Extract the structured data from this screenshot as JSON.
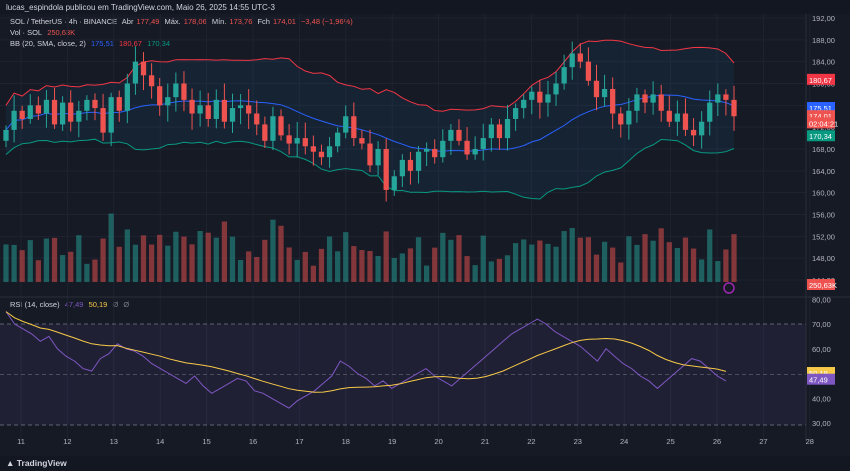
{
  "header": {
    "publish_line": "lucas_espindola publicou em TradingView.com, Maio 26, 2025 14:55 UTC-3"
  },
  "legend": {
    "symbol": "SOL / TetherUS · 4h · BINANCE",
    "ohlc": [
      {
        "label": "Abr",
        "value": "177,49"
      },
      {
        "label": "Máx.",
        "value": "178,06"
      },
      {
        "label": "Mín.",
        "value": "173,76"
      },
      {
        "label": "Fch",
        "value": "174,01"
      }
    ],
    "change": "−3,48 (−1,96%)",
    "vol_label": "Vol · SOL",
    "vol_value": "250,63K",
    "bb_label": "BB (20, SMA, close, 2)",
    "bb_values": [
      "175,51",
      "180,67",
      "170,34"
    ],
    "rsi_label": "RSI (14, close)",
    "rsi_values": [
      "47,49",
      "50,19"
    ],
    "rsi_extra": [
      "Ø",
      "Ø"
    ]
  },
  "colors": {
    "up": "#26a69a",
    "down": "#ef5350",
    "bb_basis": "#2962ff",
    "bb_upper": "#f23645",
    "bb_lower": "#089981",
    "rsi": "#7e57c2",
    "rsi_ma": "#f7c948",
    "background": "#161a25"
  },
  "price_axis": {
    "ticks": [
      "192,00",
      "188,00",
      "184,00",
      "180,00",
      "176,00",
      "172,00",
      "168,00",
      "164,00",
      "160,00",
      "156,00",
      "152,00",
      "148,00",
      "144,00"
    ]
  },
  "price_labels": [
    {
      "text": "180,67",
      "color": "#f23645",
      "value": 180.67
    },
    {
      "text": "175,51",
      "color": "#2962ff",
      "value": 175.51
    },
    {
      "text": "174,01",
      "color": "#ef5350",
      "value": 174.01
    },
    {
      "text": "02:04:21",
      "color": "#ef5350",
      "value": 172.7
    },
    {
      "text": "170,34",
      "color": "#089981",
      "value": 170.34
    }
  ],
  "volume_label": "250,63K",
  "rsi_axis": {
    "ticks": [
      "80,00",
      "70,00",
      "60,00",
      "50,00",
      "40,00",
      "30,00"
    ]
  },
  "rsi_labels": [
    {
      "text": "50,19",
      "color": "#f7c948",
      "value": 50.19
    },
    {
      "text": "47,49",
      "color": "#7e57c2",
      "value": 47.49
    }
  ],
  "x_axis": {
    "labels": [
      "11",
      "12",
      "13",
      "14",
      "15",
      "16",
      "17",
      "18",
      "19",
      "20",
      "21",
      "22",
      "23",
      "24",
      "25",
      "26",
      "27",
      "28"
    ]
  },
  "branding": {
    "footer": "TradingView"
  },
  "chart_data": {
    "type": "candlestick",
    "timeframe": "4h",
    "ylim": [
      142,
      193
    ],
    "rsi_ylim": [
      27,
      81
    ],
    "close_series": [
      171.5,
      175.0,
      173.5,
      176.0,
      174.5,
      177.0,
      172.5,
      176.5,
      173.0,
      175.0,
      177.0,
      175.5,
      171.0,
      177.5,
      175.0,
      180.0,
      184.0,
      181.5,
      179.5,
      176.0,
      177.5,
      180.0,
      177.0,
      174.5,
      176.0,
      173.5,
      177.0,
      173.0,
      175.5,
      176.0,
      174.5,
      172.5,
      169.5,
      174.0,
      170.5,
      169.0,
      170.0,
      168.5,
      167.5,
      166.5,
      168.5,
      171.0,
      174.0,
      170.0,
      169.0,
      165.0,
      168.0,
      160.5,
      163.0,
      166.0,
      164.0,
      167.5,
      168.0,
      166.5,
      169.5,
      171.5,
      169.5,
      167.0,
      168.0,
      170.0,
      172.5,
      170.0,
      173.5,
      175.5,
      177.0,
      178.5,
      176.5,
      178.0,
      180.0,
      183.0,
      185.5,
      184.0,
      180.5,
      177.5,
      179.0,
      174.5,
      172.5,
      175.0,
      178.0,
      176.5,
      178.0,
      175.0,
      173.0,
      174.5,
      171.5,
      170.5,
      173.0,
      176.5,
      178.0,
      177.0,
      174.0
    ],
    "rsi_series": [
      75,
      70,
      68,
      66,
      63,
      65,
      60,
      57,
      55,
      52,
      51,
      56,
      58,
      62,
      60,
      59,
      57,
      54,
      52,
      50,
      48,
      46,
      49,
      45,
      42,
      44,
      46,
      48,
      47,
      43,
      42,
      40,
      38,
      36,
      39,
      41,
      43,
      46,
      49,
      55,
      53,
      50,
      48,
      45,
      47,
      44,
      46,
      48,
      50,
      52,
      49,
      47,
      45,
      48,
      51,
      54,
      57,
      60,
      63,
      66,
      68,
      70,
      72,
      70,
      67,
      65,
      63,
      61,
      58,
      55,
      60,
      57,
      54,
      52,
      49,
      47,
      44,
      47,
      50,
      53,
      56,
      55,
      52,
      49,
      47
    ],
    "bb_upper_label": "180,67",
    "bb_basis_label": "175,51",
    "bb_lower_label": "170,34"
  }
}
